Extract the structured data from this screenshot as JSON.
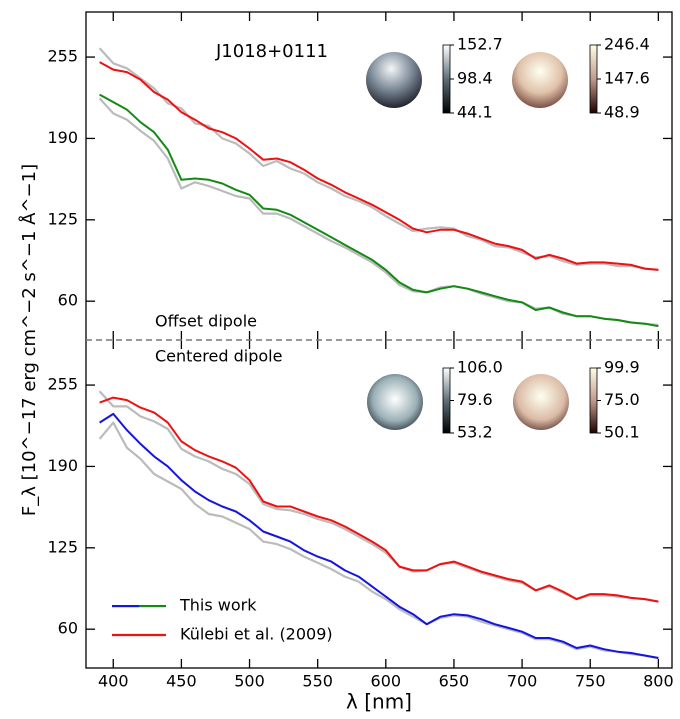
{
  "chart_data": [
    {
      "type": "line",
      "title": "J1018+0111",
      "ylabel": "F_λ [10^−17 erg cm^−2 s^−1 Å^−1]",
      "annotations": [
        "Offset dipole"
      ],
      "x": [
        390,
        400,
        410,
        420,
        430,
        440,
        450,
        460,
        470,
        480,
        490,
        500,
        510,
        520,
        530,
        540,
        550,
        560,
        570,
        580,
        590,
        600,
        610,
        620,
        630,
        640,
        650,
        660,
        670,
        680,
        690,
        700,
        710,
        720,
        730,
        740,
        750,
        760,
        770,
        780,
        790,
        800
      ],
      "xlim": [
        380,
        810
      ],
      "xticks": [
        400,
        450,
        500,
        550,
        600,
        650,
        700,
        750,
        800
      ],
      "ylim": [
        29,
        291
      ],
      "yticks": [
        60,
        125,
        190,
        255
      ],
      "series": [
        {
          "color": "#bbbbbb",
          "values": [
            262,
            250,
            246,
            238,
            230,
            218,
            214,
            202,
            200,
            190,
            186,
            178,
            168,
            172,
            166,
            162,
            155,
            150,
            144,
            140,
            135,
            128,
            122,
            116,
            118,
            119,
            118,
            112,
            109,
            104,
            103,
            99,
            95,
            96,
            92,
            89,
            90,
            90,
            88,
            88,
            86,
            85
          ]
        },
        {
          "color": "#bbbbbb",
          "values": [
            222,
            210,
            205,
            196,
            188,
            174,
            150,
            155,
            152,
            148,
            144,
            142,
            130,
            130,
            126,
            120,
            114,
            108,
            103,
            97,
            91,
            83,
            73,
            68,
            67,
            71,
            72,
            70,
            66,
            63,
            60,
            59,
            54,
            55,
            50,
            48,
            48,
            46,
            45,
            43,
            42,
            41
          ]
        },
        {
          "color": "#ee1111",
          "values": [
            251,
            245,
            243,
            237,
            227,
            221,
            211,
            205,
            198,
            195,
            190,
            182,
            173,
            174,
            171,
            165,
            158,
            153,
            147,
            142,
            137,
            131,
            125,
            118,
            115,
            117,
            117,
            114,
            110,
            106,
            104,
            101,
            94,
            97,
            94,
            90,
            91,
            91,
            90,
            89,
            86,
            85
          ]
        },
        {
          "color": "#138a13",
          "values": [
            225,
            219,
            213,
            203,
            195,
            181,
            157,
            158,
            157,
            154,
            149,
            145,
            134,
            133,
            129,
            123,
            117,
            111,
            105,
            99,
            93,
            85,
            75,
            69,
            67,
            70,
            72,
            70,
            67,
            64,
            61,
            59,
            53,
            55,
            51,
            48,
            48,
            46,
            45,
            43,
            42,
            40
          ]
        }
      ],
      "colorbars": [
        {
          "lim": [
            44.1,
            152.7
          ],
          "ticks": [
            44.1,
            98.4,
            152.7
          ],
          "colors": [
            "#000000",
            "#5c6f7a",
            "#ffffff"
          ]
        },
        {
          "lim": [
            48.9,
            246.4
          ],
          "ticks": [
            48.9,
            147.6,
            246.4
          ],
          "colors": [
            "#1e0000",
            "#c09a8e",
            "#ffffe6"
          ]
        }
      ]
    },
    {
      "type": "line",
      "xlabel": "λ [nm]",
      "annotations": [
        "Centered dipole"
      ],
      "x": [
        390,
        400,
        410,
        420,
        430,
        440,
        450,
        460,
        470,
        480,
        490,
        500,
        510,
        520,
        530,
        540,
        550,
        560,
        570,
        580,
        590,
        600,
        610,
        620,
        630,
        640,
        650,
        660,
        670,
        680,
        690,
        700,
        710,
        720,
        730,
        740,
        750,
        760,
        770,
        780,
        790,
        800
      ],
      "xlim": [
        380,
        810
      ],
      "xticks": [
        400,
        450,
        500,
        550,
        600,
        650,
        700,
        750,
        800
      ],
      "ylim": [
        29,
        291
      ],
      "yticks": [
        60,
        125,
        190,
        255
      ],
      "legend": "lower left",
      "series": [
        {
          "color": "#bbbbbb",
          "values": [
            250,
            238,
            238,
            230,
            226,
            220,
            204,
            198,
            194,
            188,
            184,
            176,
            160,
            156,
            155,
            152,
            148,
            145,
            140,
            134,
            128,
            121,
            110,
            106,
            107,
            112,
            113,
            109,
            105,
            102,
            99,
            97,
            91,
            94,
            89,
            84,
            87,
            87,
            86,
            85,
            84,
            82
          ]
        },
        {
          "color": "#bbbbbb",
          "values": [
            212,
            225,
            205,
            196,
            184,
            178,
            172,
            160,
            152,
            150,
            145,
            140,
            130,
            128,
            124,
            118,
            113,
            108,
            102,
            98,
            90,
            84,
            76,
            70,
            64,
            69,
            71,
            70,
            66,
            63,
            60,
            57,
            52,
            52,
            49,
            44,
            46,
            43,
            42,
            40,
            39,
            37
          ]
        },
        {
          "name": "This work",
          "color": "#1515e0",
          "values": [
            225,
            232,
            219,
            208,
            198,
            190,
            179,
            170,
            163,
            158,
            154,
            147,
            138,
            134,
            130,
            123,
            118,
            114,
            107,
            102,
            94,
            86,
            78,
            72,
            64,
            70,
            72,
            71,
            68,
            64,
            61,
            58,
            53,
            53,
            50,
            45,
            47,
            44,
            42,
            41,
            39,
            37
          ]
        },
        {
          "name": "Külebi et al. (2009)",
          "color": "#ee1111",
          "values": [
            241,
            245,
            243,
            237,
            233,
            225,
            210,
            203,
            198,
            194,
            189,
            179,
            162,
            158,
            158,
            154,
            150,
            147,
            142,
            136,
            130,
            123,
            110,
            107,
            107,
            112,
            114,
            110,
            106,
            103,
            100,
            98,
            91,
            95,
            90,
            84,
            88,
            88,
            87,
            85,
            84,
            82
          ]
        }
      ],
      "colorbars": [
        {
          "lim": [
            53.2,
            106
          ],
          "ticks": [
            {
              "value": 53.2,
              "label": "53.2"
            },
            79.6,
            {
              "value": 106,
              "label": "106.0"
            }
          ],
          "colors": [
            "#000000",
            "#5c6f7a",
            "#ffffff"
          ]
        },
        {
          "lim": [
            50.1,
            99.9
          ],
          "ticks": [
            50.1,
            {
              "value": 75,
              "label": "75.0"
            },
            99.9
          ],
          "colors": [
            "#1e0000",
            "#c09a8e",
            "#ffffe6"
          ]
        }
      ]
    }
  ]
}
